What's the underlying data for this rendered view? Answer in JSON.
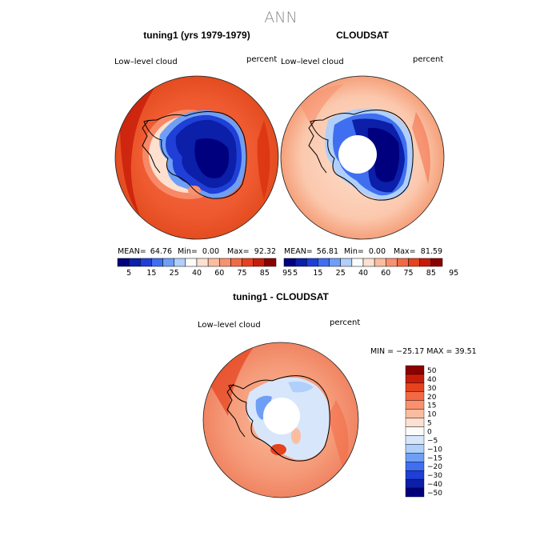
{
  "page": {
    "title": "ANN"
  },
  "panels": {
    "model": {
      "heading": "tuning1 (yrs 1979-1979)",
      "variable": "Low–level cloud",
      "units": "percent",
      "stats": {
        "mean_label": "MEAN=",
        "mean": "64.76",
        "min_label": "Min=",
        "min": "0.00",
        "max_label": "Max=",
        "max": "92.32"
      }
    },
    "obs": {
      "heading": "CLOUDSAT",
      "variable": "Low–level cloud",
      "units": "percent",
      "stats": {
        "mean_label": "MEAN=",
        "mean": "56.81",
        "min_label": "Min=",
        "min": "0.00",
        "max_label": "Max=",
        "max": "81.59"
      }
    },
    "diff": {
      "heading": "tuning1 - CLOUDSAT",
      "variable": "Low–level cloud",
      "units": "percent",
      "stats_text": "MIN = −25.17  MAX =   39.51"
    }
  },
  "chart_data": [
    {
      "type": "heatmap",
      "title": "tuning1 (yrs 1979-1979)",
      "projection": "south-polar-stereographic",
      "variable": "Low-level cloud",
      "units": "percent",
      "mean": 64.76,
      "min": 0.0,
      "max": 92.32,
      "colorbar": {
        "colors": [
          "#00007f",
          "#0b1fa9",
          "#1f3fd6",
          "#3f6ff0",
          "#6f9ff5",
          "#b0cffa",
          "#fbfbfb",
          "#fde0cf",
          "#fbbd9f",
          "#f89170",
          "#f26a45",
          "#e6421e",
          "#c81c0a",
          "#8b0000"
        ],
        "tick_labels": [
          "5",
          "15",
          "25",
          "40",
          "60",
          "75",
          "85",
          "95"
        ]
      }
    },
    {
      "type": "heatmap",
      "title": "CLOUDSAT",
      "projection": "south-polar-stereographic",
      "variable": "Low-level cloud",
      "units": "percent",
      "mean": 56.81,
      "min": 0.0,
      "max": 81.59,
      "colorbar": {
        "colors": [
          "#00007f",
          "#0b1fa9",
          "#1f3fd6",
          "#3f6ff0",
          "#6f9ff5",
          "#b0cffa",
          "#fbfbfb",
          "#fde0cf",
          "#fbbd9f",
          "#f89170",
          "#f26a45",
          "#e6421e",
          "#c81c0a",
          "#8b0000"
        ],
        "tick_labels": [
          "5",
          "15",
          "25",
          "40",
          "60",
          "75",
          "85",
          "95"
        ]
      }
    },
    {
      "type": "heatmap",
      "title": "tuning1 - CLOUDSAT",
      "projection": "south-polar-stereographic",
      "variable": "Low-level cloud",
      "units": "percent",
      "min": -25.17,
      "max": 39.51,
      "colorbar": {
        "orientation": "vertical",
        "colors": [
          "#8b0000",
          "#c81c0a",
          "#e6421e",
          "#f26a45",
          "#f89170",
          "#fbbd9f",
          "#fde0cf",
          "#fbfbfb",
          "#d8e6fb",
          "#b0cffa",
          "#6f9ff5",
          "#3f6ff0",
          "#1f3fd6",
          "#0b1fa9",
          "#00007f"
        ],
        "tick_labels": [
          "50",
          "40",
          "30",
          "20",
          "15",
          "10",
          "5",
          "0",
          "−5",
          "−10",
          "−15",
          "−20",
          "−30",
          "−40",
          "−50"
        ]
      }
    }
  ]
}
